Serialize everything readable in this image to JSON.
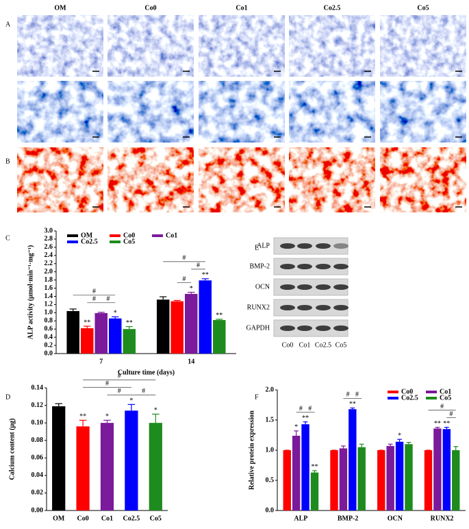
{
  "panel_labels": [
    "A",
    "B",
    "C",
    "D",
    "E",
    "F"
  ],
  "images": {
    "columns": [
      "OM",
      "Co0",
      "Co1",
      "Co2.5",
      "Co5"
    ]
  },
  "blot": {
    "proteins": [
      "ALP",
      "BMP-2",
      "OCN",
      "RUNX2",
      "GAPDH"
    ],
    "lanes": [
      "Co0",
      "Co1",
      "Co2.5",
      "Co5"
    ]
  },
  "chart_data": [
    {
      "type": "bar",
      "ylabel": "ALP activity (μmol·min⁻¹·mg⁻¹)",
      "xlabel": "Culture time (days)",
      "categories": [
        "7",
        "14"
      ],
      "series": [
        {
          "name": "OM",
          "color": "#000000",
          "values": [
            1.04,
            1.32
          ],
          "errors": [
            0.05,
            0.07
          ],
          "marks": [
            null,
            null
          ]
        },
        {
          "name": "Co0",
          "color": "#ff0000",
          "values": [
            0.62,
            1.28
          ],
          "errors": [
            0.05,
            0.02
          ],
          "marks": [
            "**",
            null
          ]
        },
        {
          "name": "Co1",
          "color": "#7b1a9a",
          "values": [
            0.99,
            1.46
          ],
          "errors": [
            0.02,
            0.04
          ],
          "marks": [
            null,
            "*"
          ]
        },
        {
          "name": "Co2.5",
          "color": "#0000ff",
          "values": [
            0.86,
            1.79
          ],
          "errors": [
            0.04,
            0.04
          ],
          "marks": [
            "*",
            "**"
          ]
        },
        {
          "name": "Co5",
          "color": "#1e8b1e",
          "values": [
            0.6,
            0.82
          ],
          "errors": [
            0.06,
            0.02
          ],
          "marks": [
            "**",
            "**"
          ]
        }
      ],
      "brackets": [
        {
          "text": "#",
          "category": 0,
          "from": 1,
          "to": 2
        },
        {
          "text": "#",
          "category": 0,
          "from": 2,
          "to": 3
        },
        {
          "text": "#",
          "category": 0,
          "from": 0,
          "to": 3
        },
        {
          "text": "#",
          "category": 1,
          "from": 1,
          "to": 2
        },
        {
          "text": "#",
          "category": 1,
          "from": 2,
          "to": 3
        },
        {
          "text": "#",
          "category": 1,
          "from": 0,
          "to": 3
        }
      ],
      "ylim": [
        0,
        3.0
      ],
      "yticks": [
        {
          "value": 0,
          "label": "0.0"
        },
        0.2,
        0.4,
        0.6,
        0.8,
        {
          "value": 1.0,
          "label": "1.0"
        },
        1.2,
        1.4,
        1.6,
        1.8,
        {
          "value": 2.0,
          "label": "2.0"
        },
        2.2,
        2.4,
        2.6,
        2.8,
        {
          "value": 3.0,
          "label": "3.0"
        }
      ],
      "legend": "top"
    },
    {
      "type": "bar",
      "ylabel": "Calcium content (μg)",
      "categories": [
        "OM",
        "Co0",
        "Co1",
        "Co2.5",
        "Co5"
      ],
      "colors": [
        "#000000",
        "#ff0000",
        "#7b1a9a",
        "#0000ff",
        "#1e8b1e"
      ],
      "values": [
        0.119,
        0.096,
        0.1,
        0.114,
        0.1
      ],
      "errors": [
        0.003,
        0.007,
        0.003,
        0.007,
        0.01
      ],
      "marks": [
        null,
        "**",
        "*",
        "*",
        "*"
      ],
      "brackets": [
        {
          "text": "#",
          "from": 2,
          "to": 3
        },
        {
          "text": "#",
          "from": 3,
          "to": 4
        },
        {
          "text": "#",
          "from": 1,
          "to": 3
        },
        {
          "text": "#",
          "from": 1,
          "to": 4
        }
      ],
      "ylim": [
        0,
        0.14
      ],
      "yticks": [
        {
          "value": 0,
          "label": "0.00"
        },
        0.02,
        0.04,
        0.06,
        0.08,
        {
          "value": 0.1,
          "label": "0.10"
        },
        0.12,
        0.14
      ]
    },
    {
      "type": "bar",
      "ylabel": "Relative protein expression",
      "categories": [
        "ALP",
        "BMP-2",
        "OCN",
        "RUNX2"
      ],
      "series": [
        {
          "name": "Co0",
          "color": "#ff0000",
          "values": [
            1,
            1,
            1,
            1
          ],
          "errors": [
            0,
            0,
            0,
            0
          ],
          "marks": [
            null,
            null,
            null,
            null
          ]
        },
        {
          "name": "Co1",
          "color": "#7b1a9a",
          "values": [
            1.24,
            1.03,
            1.07,
            1.36
          ],
          "errors": [
            0.08,
            0.04,
            0.03,
            0.02
          ],
          "marks": [
            "*",
            null,
            null,
            "**"
          ]
        },
        {
          "name": "Co2.5",
          "color": "#0000ff",
          "values": [
            1.43,
            1.68,
            1.14,
            1.35
          ],
          "errors": [
            0.04,
            0.02,
            0.04,
            0.03
          ],
          "marks": [
            "**",
            "**",
            "*",
            "**"
          ]
        },
        {
          "name": "Co5",
          "color": "#1e8b1e",
          "values": [
            0.63,
            1.05,
            1.1,
            1.0
          ],
          "errors": [
            0.03,
            0.05,
            0.03,
            0.06
          ],
          "marks": [
            "**",
            null,
            null,
            null
          ]
        }
      ],
      "brackets": [
        {
          "text": "#",
          "category": 0,
          "from": 1,
          "to": 2
        },
        {
          "text": "#",
          "category": 0,
          "from": 2,
          "to": 3
        },
        {
          "text": "#",
          "category": 1,
          "from": 1,
          "to": 2
        },
        {
          "text": "#",
          "category": 1,
          "from": 2,
          "to": 3
        },
        {
          "text": "#",
          "category": 3,
          "from": 2,
          "to": 3
        },
        {
          "text": "#",
          "category": 3,
          "from": 0,
          "to": 3
        }
      ],
      "ylim": [
        0,
        2.0
      ],
      "yticks": [
        {
          "value": 0,
          "label": "0.0"
        },
        0.5,
        {
          "value": 1.0,
          "label": "1.0"
        },
        1.5,
        {
          "value": 2.0,
          "label": "2.0"
        }
      ],
      "legend": "top-right"
    }
  ]
}
